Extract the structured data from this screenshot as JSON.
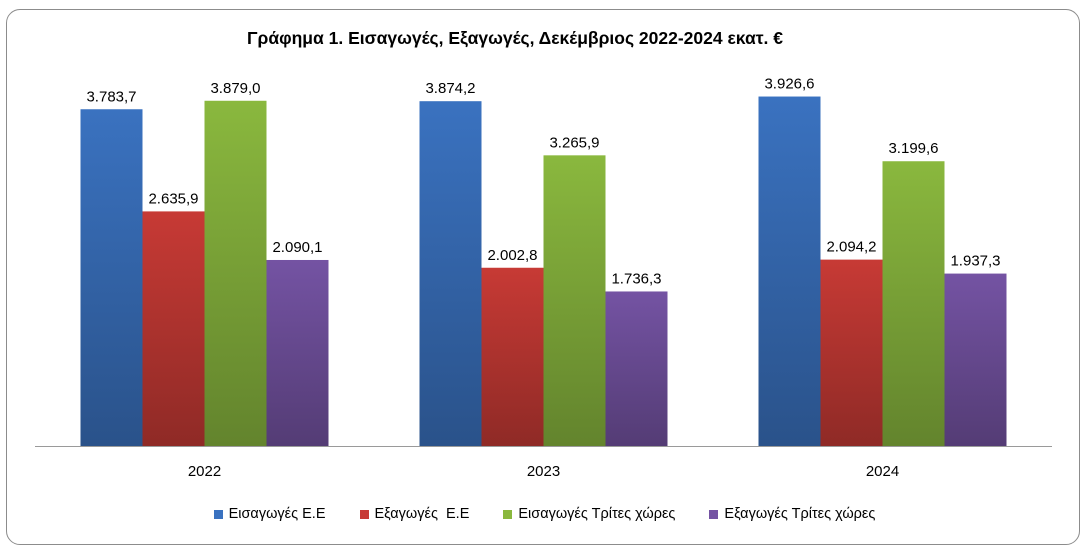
{
  "chart_data": {
    "type": "bar",
    "title": "Γράφημα 1. Εισαγωγές, Εξαγωγές, Δεκέμβριος 2022-2024 εκατ. €",
    "categories": [
      "2022",
      "2023",
      "2024"
    ],
    "series": [
      {
        "name": "Εισαγωγές Ε.Ε",
        "values": [
          3783.7,
          3874.2,
          3926.6
        ],
        "labels": [
          "3.783,7",
          "3.874,2",
          "3.926,6"
        ],
        "color": "#3a72c0"
      },
      {
        "name": "Εξαγωγές  Ε.Ε",
        "values": [
          2635.9,
          2002.8,
          2094.2
        ],
        "labels": [
          "2.635,9",
          "2.002,8",
          "2.094,2"
        ],
        "color": "#c73a35"
      },
      {
        "name": "Εισαγωγές Τρίτες χώρες",
        "values": [
          3879.0,
          3265.9,
          3199.6
        ],
        "labels": [
          "3.879,0",
          "3.265,9",
          "3.199,6"
        ],
        "color": "#8ab83e"
      },
      {
        "name": "Εξαγωγές Τρίτες χώρες",
        "values": [
          2090.1,
          1736.3,
          1937.3
        ],
        "labels": [
          "2.090,1",
          "1.736,3",
          "1.937,3"
        ],
        "color": "#7453a3"
      }
    ],
    "ylim": [
      0,
      4000
    ],
    "legend_position": "bottom",
    "grid": false
  }
}
